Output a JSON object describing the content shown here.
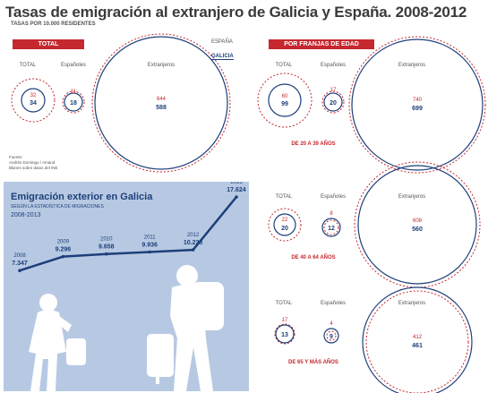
{
  "title": "Tasas de emigración al extranjero de Galicia y España. 2008-2012",
  "subtitle": "TASAS POR 10.000 RESIDENTES",
  "legend": {
    "spain": "ESPAÑA",
    "galicia": "GALICIA"
  },
  "total_section": {
    "header": "TOTAL",
    "labels": {
      "total": "TOTAL",
      "spanish": "Españoles",
      "foreign": "Extranjeros"
    },
    "values": {
      "total_es": "32",
      "total_gal": "34",
      "spanish_es": "11",
      "spanish_gal": "18",
      "foreign_es": "644",
      "foreign_gal": "588"
    }
  },
  "age_section": {
    "header": "POR FRANJAS DE EDAD",
    "groups": [
      {
        "label": "DE 20 A 39 AÑOS",
        "total": "TOTAL",
        "spanish": "Españoles",
        "foreign": "Extranjeros",
        "total_es": "60",
        "total_gal": "99",
        "spanish_es": "17",
        "spanish_gal": "20",
        "foreign_es": "740",
        "foreign_gal": "699"
      },
      {
        "label": "DE 40 A 64 AÑOS",
        "total": "TOTAL",
        "spanish": "Españoles",
        "foreign": "Extranjeros",
        "total_es": "22",
        "total_gal": "20",
        "spanish_es": "8",
        "spanish_gal": "12",
        "foreign_es": "608",
        "foreign_gal": "560"
      },
      {
        "label": "DE 65 Y MÁS AÑOS",
        "total": "TOTAL",
        "spanish": "Españoles",
        "foreign": "Extranjeros",
        "total_es": "17",
        "total_gal": "13",
        "spanish_es": "4",
        "spanish_gal": "9",
        "foreign_es": "412",
        "foreign_gal": "461"
      }
    ]
  },
  "source": {
    "line1": "Fuente:",
    "line2": "Andrés Domingo / Amand",
    "line3": "Blanes sobre datos del INE"
  },
  "chart_data": {
    "type": "line",
    "title": "Emigración exterior en Galicia",
    "subtitle": "SEGÚN LA ESTADÍSTICA DE MIGRACIONES",
    "period": "2008-2013",
    "x": [
      "2008",
      "2009",
      "2010",
      "2011",
      "2012",
      "2013"
    ],
    "y": [
      7347,
      9296,
      9658,
      9936,
      10238,
      17624
    ],
    "y_labels": [
      "7.347",
      "9.296",
      "9.658",
      "9.936",
      "10.238",
      "17.624"
    ],
    "ylim": [
      6000,
      18500
    ],
    "colors": {
      "panel": "#b7c9e2",
      "line": "#1d3f7a",
      "silhouette": "#ffffff"
    }
  },
  "colors": {
    "spain": "#c5282f",
    "galicia": "#1d3f7a",
    "accent": "#c5282f"
  }
}
